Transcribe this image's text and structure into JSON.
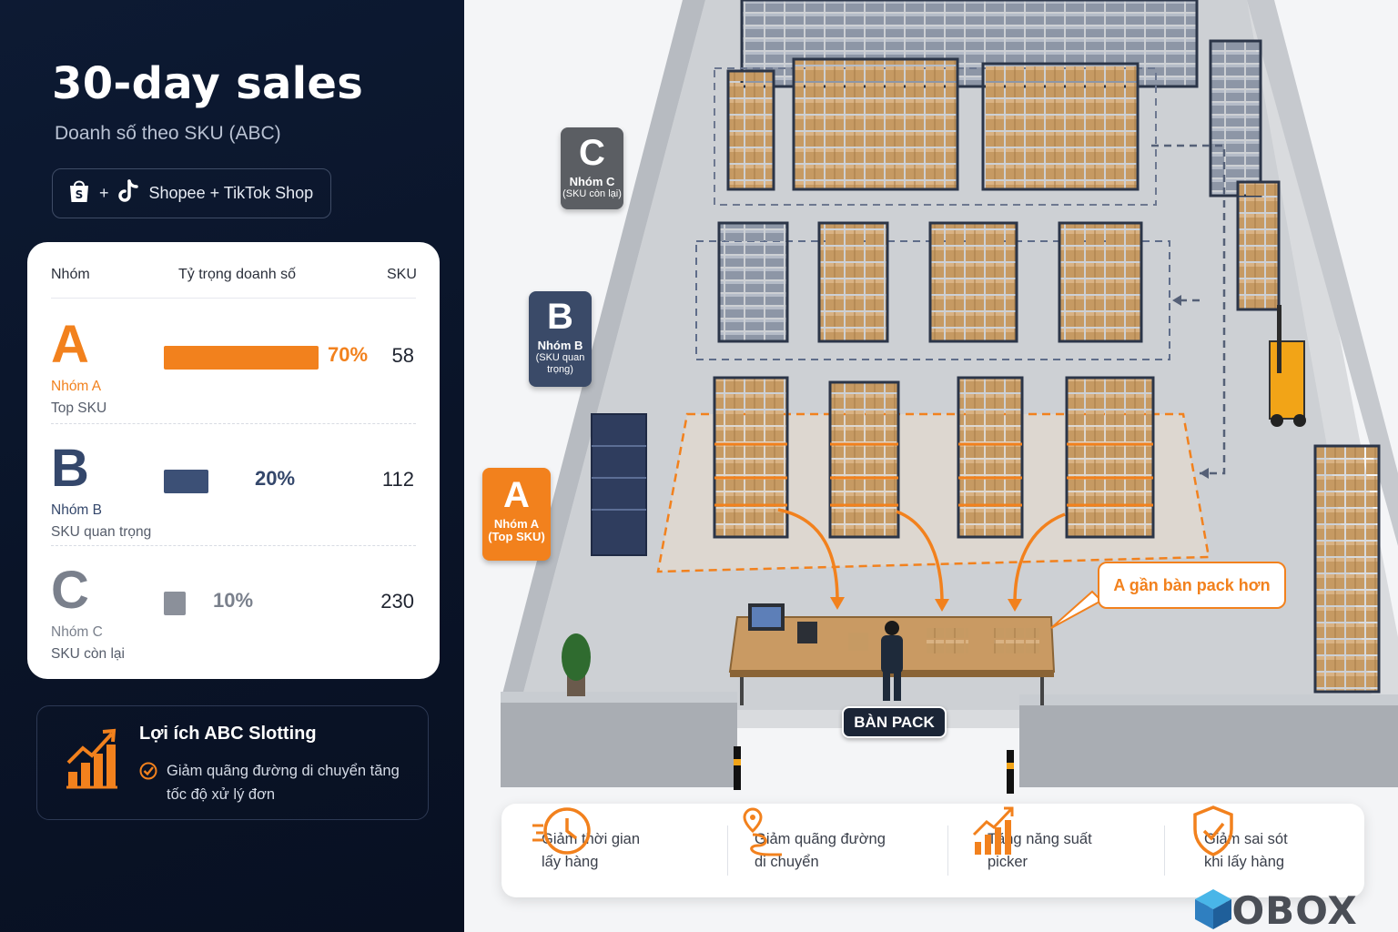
{
  "title": "30-day sales",
  "subtitle": "Doanh số theo SKU (ABC)",
  "platform": {
    "plus": "+",
    "label": "Shopee + TikTok Shop",
    "icons": [
      "shopee-bag-icon",
      "tiktok-icon"
    ]
  },
  "table": {
    "headers": {
      "group": "Nhóm",
      "share": "Tỷ trọng doanh số",
      "sku": "SKU"
    },
    "rows": [
      {
        "letter": "A",
        "name": "Nhóm A",
        "desc": "Top SKU",
        "share_label": "70%",
        "share": 70,
        "sku": "58"
      },
      {
        "letter": "B",
        "name": "Nhóm B",
        "desc": "SKU quan trọng",
        "share_label": "20%",
        "share": 20,
        "sku": "112"
      },
      {
        "letter": "C",
        "name": "Nhóm C",
        "desc": "SKU còn lại",
        "share_label": "10%",
        "share": 10,
        "sku": "230"
      }
    ]
  },
  "benefit": {
    "title": "Lợi ích ABC Slotting",
    "text": "Giảm quãng đường di chuyển tăng tốc độ xử lý đơn"
  },
  "warehouse": {
    "zones": {
      "c": {
        "letter": "C",
        "name": "Nhóm C",
        "desc": "(SKU còn lại)"
      },
      "b": {
        "letter": "B",
        "name": "Nhóm B",
        "desc": "(SKU quan trọng)"
      },
      "a": {
        "letter": "A",
        "name": "Nhóm A",
        "desc": "(Top SKU)"
      }
    },
    "callout": "A gần bàn pack hơn",
    "pack_label": "BÀN PACK"
  },
  "kpis": [
    {
      "icon": "clock-icon",
      "text": "Giảm thời gian lấy hàng"
    },
    {
      "icon": "route-pin-icon",
      "text": "Giảm quãng đường di chuyển"
    },
    {
      "icon": "growth-chart-icon",
      "text": "Tăng năng suất picker"
    },
    {
      "icon": "shield-check-icon",
      "text": "Giảm sai sót khi lấy hàng"
    }
  ],
  "brand": {
    "name": "GOBOX"
  },
  "colors": {
    "accent": "#f2811d",
    "navy": "#0d1a33",
    "group_b": "#3c5076",
    "group_c": "#8b909a"
  }
}
